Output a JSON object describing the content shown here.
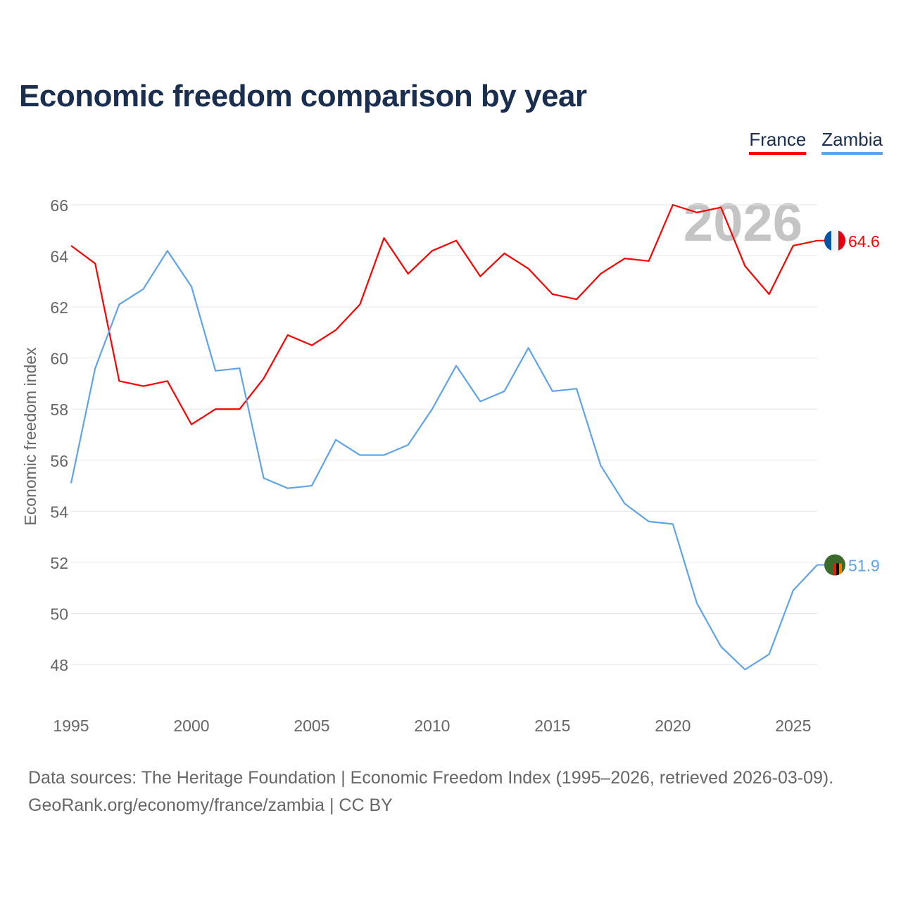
{
  "chart_data": {
    "type": "line",
    "title": "Economic freedom comparison by year",
    "xlabel": "",
    "ylabel": "Economic freedom index",
    "x": [
      1995,
      1996,
      1997,
      1998,
      1999,
      2000,
      2001,
      2002,
      2003,
      2004,
      2005,
      2006,
      2007,
      2008,
      2009,
      2010,
      2011,
      2012,
      2013,
      2014,
      2015,
      2016,
      2017,
      2018,
      2019,
      2020,
      2021,
      2022,
      2023,
      2024,
      2025,
      2026
    ],
    "xlim": [
      1995,
      2026
    ],
    "ylim": [
      48,
      66
    ],
    "xticks": [
      "1995",
      "2000",
      "2005",
      "2010",
      "2015",
      "2020",
      "2025"
    ],
    "yticks": [
      "48",
      "50",
      "52",
      "54",
      "56",
      "58",
      "60",
      "62",
      "64",
      "66"
    ],
    "grid": true,
    "legend_position": "top-right",
    "year_watermark": "2026",
    "series": [
      {
        "name": "France",
        "color": "#ff0000",
        "end_label": "64.6",
        "values": [
          64.4,
          63.7,
          59.1,
          58.9,
          59.1,
          57.4,
          58.0,
          58.0,
          59.2,
          60.9,
          60.5,
          61.1,
          62.1,
          64.7,
          63.3,
          64.2,
          64.6,
          63.2,
          64.1,
          63.5,
          62.5,
          62.3,
          63.3,
          63.9,
          63.8,
          66.0,
          65.7,
          65.9,
          63.6,
          62.5,
          64.4,
          64.6
        ]
      },
      {
        "name": "Zambia",
        "color": "#5fa3e8",
        "end_label": "51.9",
        "values": [
          55.1,
          59.6,
          62.1,
          62.7,
          64.2,
          62.8,
          59.5,
          59.6,
          55.3,
          54.9,
          55.0,
          56.8,
          56.2,
          56.2,
          56.6,
          58.0,
          59.7,
          58.3,
          58.7,
          60.4,
          58.7,
          58.8,
          55.8,
          54.3,
          53.6,
          53.5,
          50.4,
          48.7,
          47.8,
          48.4,
          50.9,
          51.9
        ]
      }
    ]
  },
  "footer": {
    "line1": "Data sources: The Heritage Foundation | Economic Freedom Index (1995–2026, retrieved 2026-03-09).",
    "line2": "GeoRank.org/economy/france/zambia | CC BY"
  }
}
